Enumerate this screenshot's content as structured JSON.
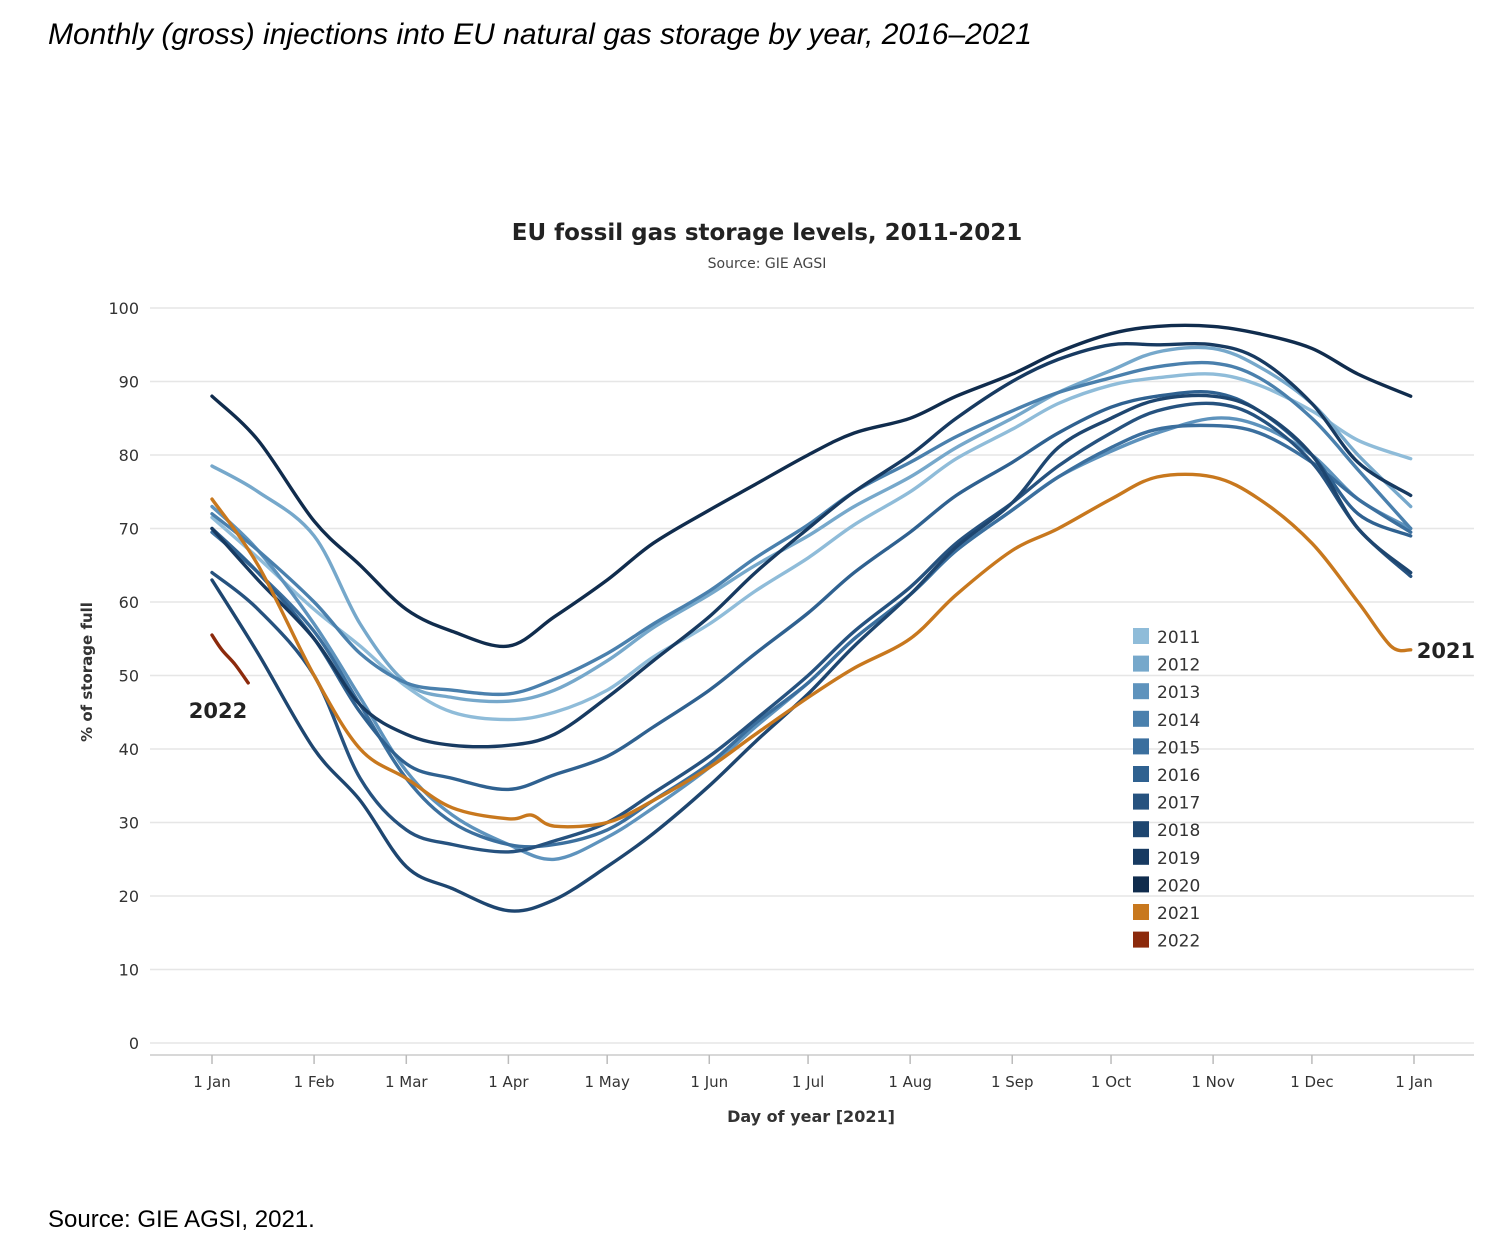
{
  "figure": {
    "caption": "Monthly (gross) injections into EU natural gas storage by year, 2016–2021",
    "source_note": "Source: GIE AGSI, 2021."
  },
  "chart_data": {
    "type": "line",
    "title": "EU fossil gas storage levels, 2011-2021",
    "subtitle": "Source: GIE AGSI",
    "xlabel": "Day of year [2021]",
    "ylabel": "% of storage full",
    "ylim": [
      0,
      100
    ],
    "yticks": [
      0,
      10,
      20,
      30,
      40,
      50,
      60,
      70,
      80,
      90,
      100
    ],
    "xlim": [
      "2021-01-01",
      "2022-01-01"
    ],
    "xticks": [
      {
        "date": "2021-01-01",
        "label": "1 Jan"
      },
      {
        "date": "2021-02-01",
        "label": "1 Feb"
      },
      {
        "date": "2021-03-01",
        "label": "1 Mar"
      },
      {
        "date": "2021-04-01",
        "label": "1 Apr"
      },
      {
        "date": "2021-05-01",
        "label": "1 May"
      },
      {
        "date": "2021-06-01",
        "label": "1 Jun"
      },
      {
        "date": "2021-07-01",
        "label": "1 Jul"
      },
      {
        "date": "2021-08-01",
        "label": "1 Aug"
      },
      {
        "date": "2021-09-01",
        "label": "1 Sep"
      },
      {
        "date": "2021-10-01",
        "label": "1 Oct"
      },
      {
        "date": "2021-11-01",
        "label": "1 Nov"
      },
      {
        "date": "2021-12-01",
        "label": "1 Dec"
      },
      {
        "date": "2022-01-01",
        "label": "1 Jan"
      }
    ],
    "grid": "horizontal",
    "legend_position": "right",
    "annotations": [
      {
        "text": "2022",
        "series": "2022"
      },
      {
        "text": "2021",
        "series": "2021"
      }
    ],
    "series": [
      {
        "name": "2011",
        "color": "#8fbcd9",
        "x": [
          "2021-01-01",
          "2021-01-15",
          "2021-02-01",
          "2021-02-15",
          "2021-03-01",
          "2021-03-15",
          "2021-04-01",
          "2021-04-15",
          "2021-05-01",
          "2021-05-15",
          "2021-06-01",
          "2021-06-15",
          "2021-07-01",
          "2021-07-15",
          "2021-08-01",
          "2021-08-15",
          "2021-09-01",
          "2021-09-15",
          "2021-10-01",
          "2021-10-15",
          "2021-11-01",
          "2021-11-15",
          "2021-12-01",
          "2021-12-15",
          "2021-12-31"
        ],
        "y": [
          71.5,
          66,
          59,
          54,
          48.5,
          45,
          44,
          45,
          48,
          52.5,
          57,
          61.5,
          66,
          70.5,
          75,
          79.5,
          83.5,
          87,
          89.5,
          90.5,
          91,
          89.5,
          86,
          82,
          79.5
        ]
      },
      {
        "name": "2012",
        "color": "#76a8cb",
        "x": [
          "2021-01-01",
          "2021-01-15",
          "2021-02-01",
          "2021-02-15",
          "2021-03-01",
          "2021-03-15",
          "2021-04-01",
          "2021-04-15",
          "2021-05-01",
          "2021-05-15",
          "2021-06-01",
          "2021-06-15",
          "2021-07-01",
          "2021-07-15",
          "2021-08-01",
          "2021-08-15",
          "2021-09-01",
          "2021-09-15",
          "2021-10-01",
          "2021-10-15",
          "2021-11-01",
          "2021-11-15",
          "2021-12-01",
          "2021-12-15",
          "2021-12-31"
        ],
        "y": [
          78.5,
          75,
          69,
          57,
          49,
          47,
          46.5,
          48,
          52,
          56.5,
          61,
          65,
          69,
          73,
          77,
          81,
          85,
          88.5,
          91.5,
          94,
          94.5,
          92,
          87,
          80,
          73
        ]
      },
      {
        "name": "2013",
        "color": "#5e93bd",
        "x": [
          "2021-01-01",
          "2021-01-15",
          "2021-02-01",
          "2021-02-15",
          "2021-03-01",
          "2021-03-15",
          "2021-04-01",
          "2021-04-15",
          "2021-05-01",
          "2021-05-15",
          "2021-06-01",
          "2021-06-15",
          "2021-07-01",
          "2021-07-15",
          "2021-08-01",
          "2021-08-15",
          "2021-09-01",
          "2021-09-15",
          "2021-10-01",
          "2021-10-15",
          "2021-11-01",
          "2021-11-15",
          "2021-12-01",
          "2021-12-15",
          "2021-12-31"
        ],
        "y": [
          73,
          67,
          57,
          47,
          37,
          31,
          27,
          25,
          28,
          32,
          37.5,
          43,
          49,
          55,
          61,
          67,
          72.5,
          77,
          80.5,
          83,
          85,
          84,
          80,
          74,
          70
        ]
      },
      {
        "name": "2014",
        "color": "#4a80ad",
        "x": [
          "2021-01-01",
          "2021-01-15",
          "2021-02-01",
          "2021-02-15",
          "2021-03-01",
          "2021-03-15",
          "2021-04-01",
          "2021-04-15",
          "2021-05-01",
          "2021-05-15",
          "2021-06-01",
          "2021-06-15",
          "2021-07-01",
          "2021-07-15",
          "2021-08-01",
          "2021-08-15",
          "2021-09-01",
          "2021-09-15",
          "2021-10-01",
          "2021-10-15",
          "2021-11-01",
          "2021-11-15",
          "2021-12-01",
          "2021-12-15",
          "2021-12-31"
        ],
        "y": [
          72,
          67,
          60,
          53,
          49,
          48,
          47.5,
          49.5,
          53,
          57,
          61.5,
          66,
          70.5,
          75,
          79,
          82.5,
          86,
          88.5,
          90.5,
          92,
          92.5,
          90.5,
          85,
          78,
          70
        ]
      },
      {
        "name": "2015",
        "color": "#3b6f9e",
        "x": [
          "2021-01-01",
          "2021-01-15",
          "2021-02-01",
          "2021-02-15",
          "2021-03-01",
          "2021-03-15",
          "2021-04-01",
          "2021-04-15",
          "2021-05-01",
          "2021-05-15",
          "2021-06-01",
          "2021-06-15",
          "2021-07-01",
          "2021-07-15",
          "2021-08-01",
          "2021-08-15",
          "2021-09-01",
          "2021-09-15",
          "2021-10-01",
          "2021-10-15",
          "2021-11-01",
          "2021-11-15",
          "2021-12-01",
          "2021-12-15",
          "2021-12-31"
        ],
        "y": [
          69.5,
          64,
          56,
          46,
          36,
          30,
          27,
          27,
          29,
          33,
          38,
          43.5,
          49,
          55,
          61,
          67,
          72.5,
          77,
          81,
          83.5,
          84,
          83,
          79,
          74,
          69.5
        ]
      },
      {
        "name": "2016",
        "color": "#2f6190",
        "x": [
          "2021-01-01",
          "2021-01-15",
          "2021-02-01",
          "2021-02-15",
          "2021-03-01",
          "2021-03-15",
          "2021-04-01",
          "2021-04-15",
          "2021-05-01",
          "2021-05-15",
          "2021-06-01",
          "2021-06-15",
          "2021-07-01",
          "2021-07-15",
          "2021-08-01",
          "2021-08-15",
          "2021-09-01",
          "2021-09-15",
          "2021-10-01",
          "2021-10-15",
          "2021-11-01",
          "2021-11-15",
          "2021-12-01",
          "2021-12-15",
          "2021-12-31"
        ],
        "y": [
          70,
          64,
          55,
          45,
          38,
          36,
          34.5,
          36.5,
          39,
          43,
          48,
          53,
          58.5,
          64,
          69.5,
          74.5,
          79,
          83,
          86.5,
          88,
          88.5,
          86,
          80,
          72,
          69
        ]
      },
      {
        "name": "2017",
        "color": "#26527f",
        "x": [
          "2021-01-01",
          "2021-01-15",
          "2021-02-01",
          "2021-02-15",
          "2021-03-01",
          "2021-03-15",
          "2021-04-01",
          "2021-04-15",
          "2021-05-01",
          "2021-05-15",
          "2021-06-01",
          "2021-06-15",
          "2021-07-01",
          "2021-07-15",
          "2021-08-01",
          "2021-08-15",
          "2021-09-01",
          "2021-09-15",
          "2021-10-01",
          "2021-10-15",
          "2021-11-01",
          "2021-11-15",
          "2021-12-01",
          "2021-12-15",
          "2021-12-31"
        ],
        "y": [
          64,
          59,
          50,
          36,
          29,
          27,
          26,
          27.5,
          30,
          34,
          39,
          44,
          50,
          56,
          62,
          68,
          73.5,
          78.5,
          83,
          86,
          87,
          85,
          79,
          70,
          63.5
        ]
      },
      {
        "name": "2018",
        "color": "#1e4670",
        "x": [
          "2021-01-01",
          "2021-01-15",
          "2021-02-01",
          "2021-02-15",
          "2021-03-01",
          "2021-03-15",
          "2021-04-01",
          "2021-04-15",
          "2021-05-01",
          "2021-05-15",
          "2021-06-01",
          "2021-06-15",
          "2021-07-01",
          "2021-07-15",
          "2021-08-01",
          "2021-08-15",
          "2021-09-01",
          "2021-09-15",
          "2021-10-01",
          "2021-10-15",
          "2021-11-01",
          "2021-11-15",
          "2021-12-01",
          "2021-12-15",
          "2021-12-31"
        ],
        "y": [
          63,
          53,
          40,
          33,
          24,
          21,
          18,
          19.5,
          24,
          28.5,
          35,
          41,
          47.5,
          54,
          61,
          67.5,
          73.5,
          81,
          85,
          87.5,
          88,
          86,
          80,
          70,
          64
        ]
      },
      {
        "name": "2019",
        "color": "#173a61",
        "x": [
          "2021-01-01",
          "2021-01-15",
          "2021-02-01",
          "2021-02-15",
          "2021-03-01",
          "2021-03-15",
          "2021-04-01",
          "2021-04-15",
          "2021-05-01",
          "2021-05-15",
          "2021-06-01",
          "2021-06-15",
          "2021-07-01",
          "2021-07-15",
          "2021-08-01",
          "2021-08-15",
          "2021-09-01",
          "2021-09-15",
          "2021-10-01",
          "2021-10-15",
          "2021-11-01",
          "2021-11-15",
          "2021-12-01",
          "2021-12-15",
          "2021-12-31"
        ],
        "y": [
          70,
          63,
          55,
          46,
          42,
          40.5,
          40.5,
          42,
          47,
          52,
          58,
          64,
          70,
          75,
          80,
          85,
          90,
          93,
          95,
          95,
          95,
          93,
          87,
          79,
          74.5
        ]
      },
      {
        "name": "2020",
        "color": "#102c4d",
        "x": [
          "2021-01-01",
          "2021-01-15",
          "2021-02-01",
          "2021-02-15",
          "2021-03-01",
          "2021-03-15",
          "2021-04-01",
          "2021-04-15",
          "2021-05-01",
          "2021-05-15",
          "2021-06-01",
          "2021-06-15",
          "2021-07-01",
          "2021-07-15",
          "2021-08-01",
          "2021-08-15",
          "2021-09-01",
          "2021-09-15",
          "2021-10-01",
          "2021-10-15",
          "2021-11-01",
          "2021-11-15",
          "2021-12-01",
          "2021-12-15",
          "2021-12-31"
        ],
        "y": [
          88,
          82,
          71,
          65,
          59,
          56,
          54,
          58,
          63,
          68,
          72.5,
          76,
          80,
          83,
          85,
          88,
          91,
          94,
          96.5,
          97.5,
          97.5,
          96.5,
          94.5,
          91,
          88
        ]
      },
      {
        "name": "2021",
        "color": "#c8781e",
        "x": [
          "2021-01-01",
          "2021-01-15",
          "2021-02-01",
          "2021-02-15",
          "2021-03-01",
          "2021-03-15",
          "2021-04-01",
          "2021-04-08",
          "2021-04-15",
          "2021-05-01",
          "2021-05-15",
          "2021-06-01",
          "2021-06-15",
          "2021-07-01",
          "2021-07-15",
          "2021-08-01",
          "2021-08-15",
          "2021-09-01",
          "2021-09-15",
          "2021-10-01",
          "2021-10-15",
          "2021-11-01",
          "2021-11-15",
          "2021-12-01",
          "2021-12-15",
          "2021-12-25",
          "2021-12-31"
        ],
        "y": [
          74,
          65,
          50,
          40,
          36,
          32,
          30.5,
          31,
          29.5,
          30,
          33,
          37.5,
          42,
          47,
          51,
          55,
          61,
          67,
          70,
          74,
          77,
          77,
          74,
          68,
          60,
          54,
          53.5
        ]
      },
      {
        "name": "2022",
        "color": "#8c2a0c",
        "x": [
          "2021-01-01",
          "2021-01-04",
          "2021-01-08",
          "2021-01-12"
        ],
        "y": [
          55.5,
          53.5,
          51.5,
          49
        ]
      }
    ]
  }
}
